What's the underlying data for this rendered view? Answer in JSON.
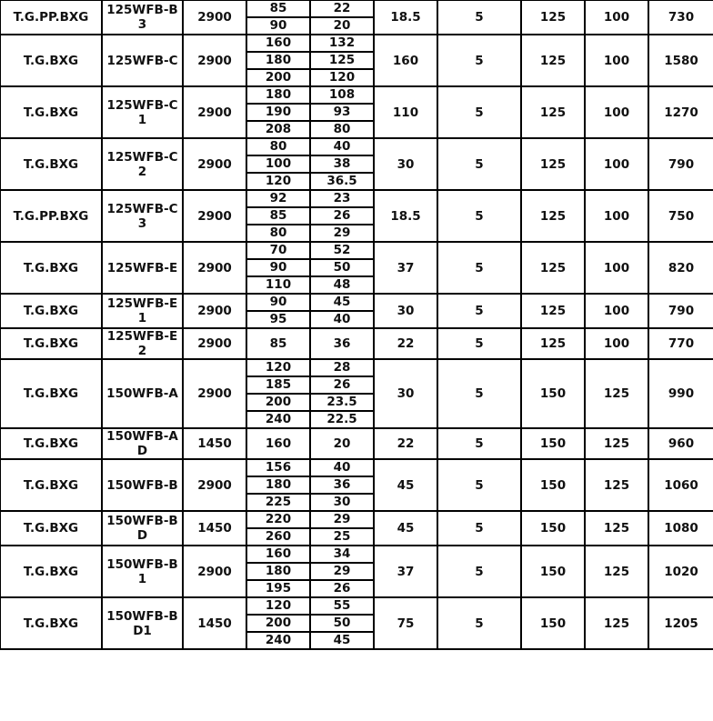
{
  "rows": [
    {
      "series": "T.G.PP.BXG",
      "model": "125WFB-B3",
      "speed": "2900",
      "flow": [
        "85",
        "90"
      ],
      "head": [
        "22",
        "20"
      ],
      "power": "18.5",
      "npsh": "5",
      "inlet": "125",
      "outlet": "100",
      "weight": "730"
    },
    {
      "series": "T.G.BXG",
      "model": "125WFB-C",
      "speed": "2900",
      "flow": [
        "160",
        "180",
        "200"
      ],
      "head": [
        "132",
        "125",
        "120"
      ],
      "power": "160",
      "npsh": "5",
      "inlet": "125",
      "outlet": "100",
      "weight": "1580"
    },
    {
      "series": "T.G.BXG",
      "model": "125WFB-C1",
      "speed": "2900",
      "flow": [
        "180",
        "190",
        "208"
      ],
      "head": [
        "108",
        "93",
        "80"
      ],
      "power": "110",
      "npsh": "5",
      "inlet": "125",
      "outlet": "100",
      "weight": "1270"
    },
    {
      "series": "T.G.BXG",
      "model": "125WFB-C2",
      "speed": "2900",
      "flow": [
        "80",
        "100",
        "120"
      ],
      "head": [
        "40",
        "38",
        "36.5"
      ],
      "power": "30",
      "npsh": "5",
      "inlet": "125",
      "outlet": "100",
      "weight": "790"
    },
    {
      "series": "T.G.PP.BXG",
      "model": "125WFB-C3",
      "speed": "2900",
      "flow": [
        "92",
        "85",
        "80"
      ],
      "head": [
        "23",
        "26",
        "29"
      ],
      "power": "18.5",
      "npsh": "5",
      "inlet": "125",
      "outlet": "100",
      "weight": "750"
    },
    {
      "series": "T.G.BXG",
      "model": "125WFB-E",
      "speed": "2900",
      "flow": [
        "70",
        "90",
        "110"
      ],
      "head": [
        "52",
        "50",
        "48"
      ],
      "power": "37",
      "npsh": "5",
      "inlet": "125",
      "outlet": "100",
      "weight": "820"
    },
    {
      "series": "T.G.BXG",
      "model": "125WFB-E1",
      "speed": "2900",
      "flow": [
        "90",
        "95"
      ],
      "head": [
        "45",
        "40"
      ],
      "power": "30",
      "npsh": "5",
      "inlet": "125",
      "outlet": "100",
      "weight": "790"
    },
    {
      "series": "T.G.BXG",
      "model": "125WFB-E2",
      "speed": "2900",
      "flow": [
        "85"
      ],
      "head": [
        "36"
      ],
      "power": "22",
      "npsh": "5",
      "inlet": "125",
      "outlet": "100",
      "weight": "770"
    },
    {
      "series": "T.G.BXG",
      "model": "150WFB-A",
      "speed": "2900",
      "flow": [
        "120",
        "185",
        "200",
        "240"
      ],
      "head": [
        "28",
        "26",
        "23.5",
        "22.5"
      ],
      "power": "30",
      "npsh": "5",
      "inlet": "150",
      "outlet": "125",
      "weight": "990"
    },
    {
      "series": "T.G.BXG",
      "model": "150WFB-AD",
      "speed": "1450",
      "flow": [
        "160"
      ],
      "head": [
        "20"
      ],
      "power": "22",
      "npsh": "5",
      "inlet": "150",
      "outlet": "125",
      "weight": "960"
    },
    {
      "series": "T.G.BXG",
      "model": "150WFB-B",
      "speed": "2900",
      "flow": [
        "156",
        "180",
        "225"
      ],
      "head": [
        "40",
        "36",
        "30"
      ],
      "power": "45",
      "npsh": "5",
      "inlet": "150",
      "outlet": "125",
      "weight": "1060"
    },
    {
      "series": "T.G.BXG",
      "model": "150WFB-BD",
      "speed": "1450",
      "flow": [
        "220",
        "260"
      ],
      "head": [
        "29",
        "25"
      ],
      "power": "45",
      "npsh": "5",
      "inlet": "150",
      "outlet": "125",
      "weight": "1080"
    },
    {
      "series": "T.G.BXG",
      "model": "150WFB-B1",
      "speed": "2900",
      "flow": [
        "160",
        "180",
        "195"
      ],
      "head": [
        "34",
        "29",
        "26"
      ],
      "power": "37",
      "npsh": "5",
      "inlet": "150",
      "outlet": "125",
      "weight": "1020"
    },
    {
      "series": "T.G.BXG",
      "model": "150WFB-BD1",
      "speed": "1450",
      "flow": [
        "120",
        "200",
        "240"
      ],
      "head": [
        "55",
        "50",
        "45"
      ],
      "power": "75",
      "npsh": "5",
      "inlet": "150",
      "outlet": "125",
      "weight": "1205"
    }
  ]
}
